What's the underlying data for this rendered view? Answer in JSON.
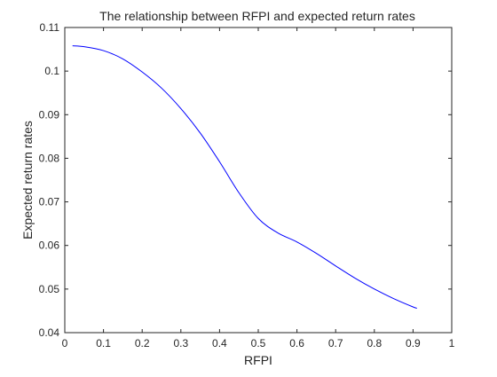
{
  "chart_data": {
    "type": "line",
    "title": "The relationship between RFPI and expected return rates",
    "xlabel": "RFPI",
    "ylabel": "Expected return rates",
    "xlim": [
      0,
      1
    ],
    "ylim": [
      0.04,
      0.11
    ],
    "xticks": [
      "0",
      "0.1",
      "0.2",
      "0.3",
      "0.4",
      "0.5",
      "0.6",
      "0.7",
      "0.8",
      "0.9",
      "1"
    ],
    "yticks": [
      "0.04",
      "0.05",
      "0.06",
      "0.07",
      "0.08",
      "0.09",
      "0.1",
      "0.11"
    ],
    "grid": false,
    "legend": "none",
    "series": [
      {
        "color": "#0000ff",
        "x": [
          0.02,
          0.05,
          0.1,
          0.15,
          0.2,
          0.25,
          0.3,
          0.35,
          0.4,
          0.45,
          0.5,
          0.55,
          0.6,
          0.65,
          0.7,
          0.75,
          0.8,
          0.85,
          0.9,
          0.91
        ],
        "y": [
          0.1058,
          0.1056,
          0.1047,
          0.1028,
          0.0998,
          0.0961,
          0.0914,
          0.0858,
          0.0792,
          0.0721,
          0.0662,
          0.0629,
          0.0608,
          0.0582,
          0.0553,
          0.0525,
          0.05,
          0.0478,
          0.0459,
          0.0456
        ]
      }
    ]
  }
}
